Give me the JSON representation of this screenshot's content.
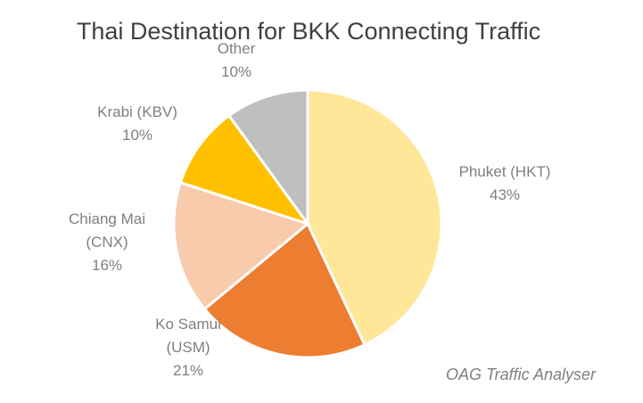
{
  "chart_data": {
    "type": "pie",
    "title": "Thai Destination for BKK Connecting Traffic",
    "source": "OAG Traffic Analyser",
    "slices": [
      {
        "lines": [
          "Phuket (HKT)"
        ],
        "value": 43,
        "value_label": "43%",
        "color": "#ffe699"
      },
      {
        "lines": [
          "Ko Samui",
          "(USM)"
        ],
        "value": 21,
        "value_label": "21%",
        "color": "#ed7d31"
      },
      {
        "lines": [
          "Chiang Mai",
          "(CNX)"
        ],
        "value": 16,
        "value_label": "16%",
        "color": "#f8cbad"
      },
      {
        "lines": [
          "Krabi (KBV)"
        ],
        "value": 10,
        "value_label": "10%",
        "color": "#ffc000"
      },
      {
        "lines": [
          "Other"
        ],
        "value": 10,
        "value_label": "10%",
        "color": "#bfbfbf"
      }
    ]
  }
}
